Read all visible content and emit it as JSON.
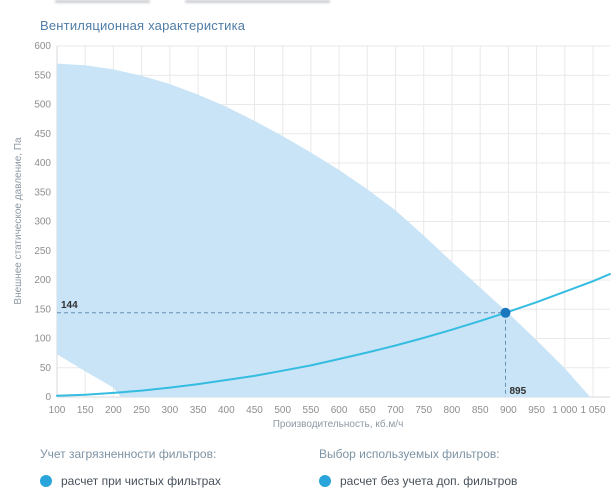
{
  "title": "Вентиляционная характеристика",
  "chart_data": {
    "type": "area",
    "title": "Вентиляционная характеристика",
    "xlabel": "Производительность, кб.м/ч",
    "ylabel": "Внешнее статическое давление, Па",
    "xlim": [
      100,
      1050
    ],
    "ylim": [
      0,
      600
    ],
    "grid": "on",
    "x_ticks": [
      100,
      150,
      200,
      250,
      300,
      350,
      400,
      450,
      500,
      550,
      600,
      650,
      700,
      750,
      800,
      850,
      900,
      950,
      1000,
      1050
    ],
    "x_tick_labels": [
      "100",
      "150",
      "200",
      "250",
      "300",
      "350",
      "400",
      "450",
      "500",
      "550",
      "600",
      "650",
      "700",
      "750",
      "800",
      "850",
      "900",
      "950",
      "1 000",
      "1 050"
    ],
    "y_ticks": [
      0,
      50,
      100,
      150,
      200,
      250,
      300,
      350,
      400,
      450,
      500,
      550,
      600
    ],
    "y_tick_labels": [
      "0",
      "50",
      "100",
      "150",
      "200",
      "250",
      "300",
      "350",
      "400",
      "450",
      "500",
      "550",
      "600"
    ],
    "envelope": {
      "name": "fan-operating-envelope",
      "fill": "#c9e4f6",
      "upper": [
        [
          100,
          570
        ],
        [
          150,
          567
        ],
        [
          200,
          560
        ],
        [
          250,
          549
        ],
        [
          300,
          535
        ],
        [
          350,
          517
        ],
        [
          400,
          496
        ],
        [
          450,
          472
        ],
        [
          500,
          446
        ],
        [
          550,
          418
        ],
        [
          600,
          388
        ],
        [
          650,
          355
        ],
        [
          700,
          319
        ],
        [
          750,
          276
        ],
        [
          800,
          231
        ],
        [
          850,
          187
        ],
        [
          900,
          143
        ],
        [
          950,
          97
        ],
        [
          1000,
          49
        ],
        [
          1045,
          0
        ]
      ],
      "lower": [
        [
          100,
          73
        ],
        [
          150,
          44
        ],
        [
          200,
          16
        ],
        [
          213,
          0
        ]
      ]
    },
    "system_curve": {
      "name": "system-resistance-curve",
      "color": "#35bde1",
      "points": [
        [
          100,
          2
        ],
        [
          150,
          4
        ],
        [
          200,
          7
        ],
        [
          250,
          11
        ],
        [
          300,
          16
        ],
        [
          350,
          22
        ],
        [
          400,
          29
        ],
        [
          450,
          36
        ],
        [
          500,
          45
        ],
        [
          550,
          54
        ],
        [
          600,
          65
        ],
        [
          650,
          76
        ],
        [
          700,
          88
        ],
        [
          750,
          101
        ],
        [
          800,
          115
        ],
        [
          850,
          130
        ],
        [
          895,
          144
        ],
        [
          950,
          162
        ],
        [
          1000,
          180
        ],
        [
          1050,
          198
        ],
        [
          1080,
          210
        ]
      ]
    },
    "operating_point": {
      "q": 895,
      "p": 144,
      "color": "#1a77bd",
      "labels": {
        "pressure": "144",
        "flow": "895"
      }
    },
    "colors": {
      "grid": "#e9e9e9",
      "axis_line": "#d4d8dc",
      "reference": "#6690b4",
      "area_fill": "#c9e4f6",
      "curve": "#35bde1",
      "point": "#1a77bd",
      "legend_dot": "#29a5db",
      "title_text": "#4e7ca6"
    }
  },
  "filters": {
    "left": {
      "header": "Учет загрязненности фильтров:",
      "items": [
        {
          "label": "расчет при чистых фильтрах"
        }
      ]
    },
    "right": {
      "header": "Выбор используемых фильтров:",
      "items": [
        {
          "label": "расчет без учета доп. фильтров"
        }
      ]
    }
  }
}
